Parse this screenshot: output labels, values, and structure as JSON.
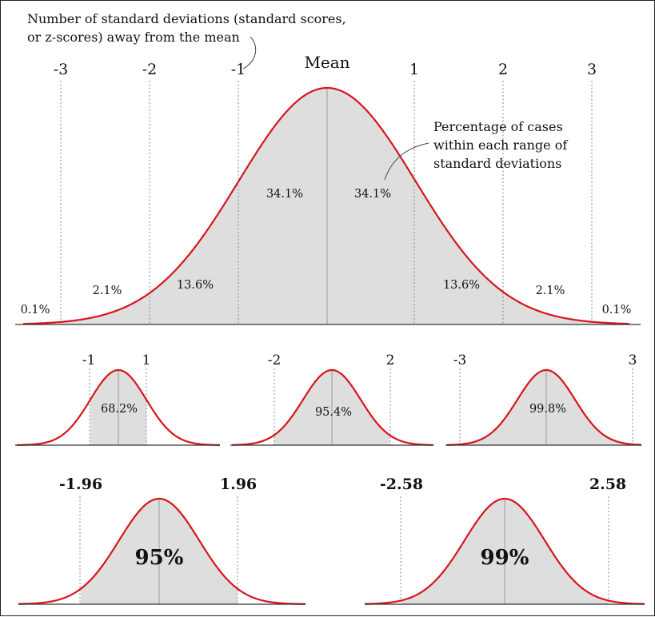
{
  "colors": {
    "curve": "#d8141c",
    "shade": "#dedede",
    "text": "#111111"
  },
  "main": {
    "annotation_top": [
      "Number of standard deviations (standard scores,",
      "or z-scores) away from the mean"
    ],
    "mean_label": "Mean",
    "sd_labels": [
      "-3",
      "-2",
      "-1",
      "1",
      "2",
      "3"
    ],
    "annotation_right": [
      "Percentage of cases",
      "within each range of",
      "standard deviations"
    ],
    "percentages": [
      "0.1%",
      "2.1%",
      "13.6%",
      "34.1%",
      "34.1%",
      "13.6%",
      "2.1%",
      "0.1%"
    ]
  },
  "small_curves": [
    {
      "low": "-1",
      "high": "1",
      "percent": "68.2%",
      "sd": 1
    },
    {
      "low": "-2",
      "high": "2",
      "percent": "95.4%",
      "sd": 2
    },
    {
      "low": "-3",
      "high": "3",
      "percent": "99.8%",
      "sd": 3
    }
  ],
  "confidence_curves": [
    {
      "low": "-1.96",
      "high": "1.96",
      "percent": "95%",
      "z": 1.96
    },
    {
      "low": "-2.58",
      "high": "2.58",
      "percent": "99%",
      "z": 2.58
    }
  ]
}
